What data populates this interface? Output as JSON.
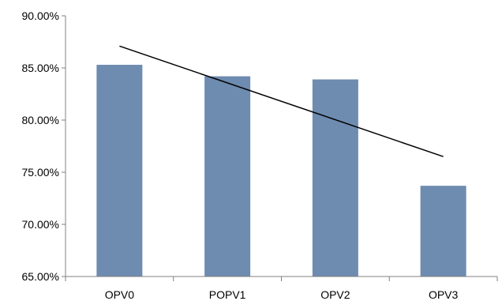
{
  "chart_data": {
    "type": "bar",
    "categories": [
      "OPV0",
      "POPV1",
      "OPV2",
      "OPV3"
    ],
    "series": [
      {
        "values": [
          85.3,
          84.2,
          83.9,
          73.7
        ]
      }
    ],
    "trendline": {
      "type": "linear",
      "start": 87.1,
      "end": 76.5
    },
    "ylim": [
      65,
      90
    ],
    "yticks": [
      "65.00%",
      "70.00%",
      "75.00%",
      "80.00%",
      "85.00%",
      "90.00%"
    ],
    "ytick_values": [
      65,
      70,
      75,
      80,
      85,
      90
    ],
    "grid": false,
    "legend": "none",
    "colors": {
      "bar": "#6e8bb0",
      "trendline": "#000000",
      "axis": "#808080"
    }
  }
}
